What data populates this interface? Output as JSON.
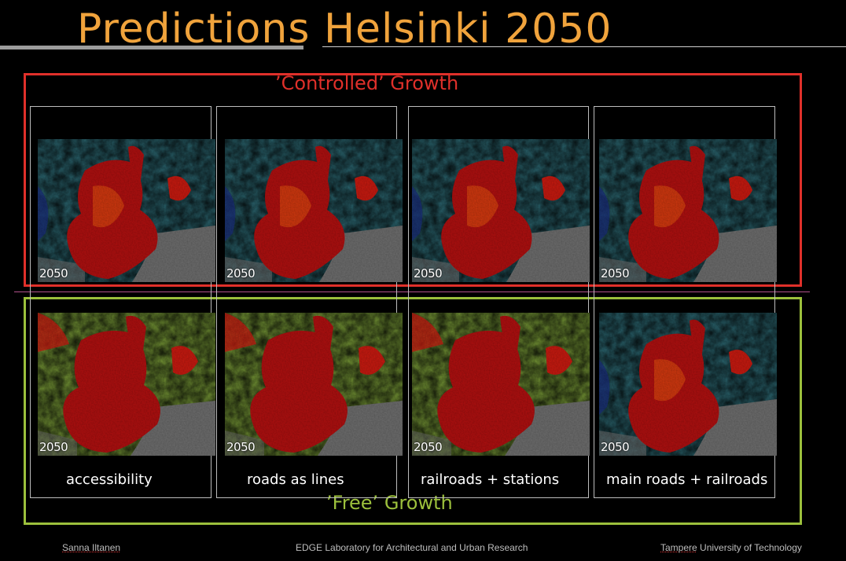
{
  "title": "Predictions  Helsinki 2050",
  "groups": {
    "controlled": "’Controlled’ Growth",
    "free": "’Free’ Growth"
  },
  "year_label": "2050",
  "columns": [
    {
      "label": "accessibility"
    },
    {
      "label": "roads as lines"
    },
    {
      "label": "railroads + stations"
    },
    {
      "label": "main roads + railroads"
    }
  ],
  "footer": {
    "author": "Sanna Iltanen",
    "lab": "EDGE Laboratory for Architectural and Urban Research",
    "university_first": "Tampere",
    "university_rest": " University of Technology"
  },
  "colors": {
    "title": "#f0a33c",
    "controlled": "#e0302a",
    "free": "#9cc03c",
    "map_high": "#b01010",
    "map_mid": "#e0c020",
    "map_low": "#2a5a78",
    "sea": "#6e6e6e"
  }
}
